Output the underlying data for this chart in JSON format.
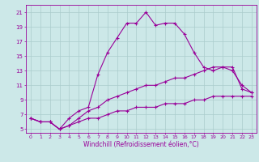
{
  "title": "",
  "xlabel": "Windchill (Refroidissement éolien,°C)",
  "ylabel": "",
  "bg_color": "#cce8e8",
  "grid_color": "#aacccc",
  "line_color": "#990099",
  "xlim": [
    -0.5,
    23.5
  ],
  "ylim": [
    4.5,
    22.0
  ],
  "xticks": [
    0,
    1,
    2,
    3,
    4,
    5,
    6,
    7,
    8,
    9,
    10,
    11,
    12,
    13,
    14,
    15,
    16,
    17,
    18,
    19,
    20,
    21,
    22,
    23
  ],
  "yticks": [
    5,
    7,
    9,
    11,
    13,
    15,
    17,
    19,
    21
  ],
  "curve1_x": [
    0,
    1,
    2,
    3,
    4,
    5,
    6,
    7,
    8,
    9,
    10,
    11,
    12,
    13,
    14,
    15,
    16,
    17,
    18,
    19,
    20,
    21,
    22,
    23
  ],
  "curve1_y": [
    6.5,
    6.0,
    6.0,
    5.0,
    6.5,
    7.5,
    8.0,
    12.5,
    15.5,
    17.5,
    19.5,
    19.5,
    21.0,
    19.2,
    19.5,
    19.5,
    18.0,
    15.5,
    13.5,
    13.0,
    13.5,
    13.0,
    11.0,
    10.0
  ],
  "curve2_x": [
    0,
    1,
    2,
    3,
    4,
    5,
    6,
    7,
    8,
    9,
    10,
    11,
    12,
    13,
    14,
    15,
    16,
    17,
    18,
    19,
    20,
    21,
    22,
    23
  ],
  "curve2_y": [
    6.5,
    6.0,
    6.0,
    5.0,
    5.5,
    6.5,
    7.5,
    8.0,
    9.0,
    9.5,
    10.0,
    10.5,
    11.0,
    11.0,
    11.5,
    12.0,
    12.0,
    12.5,
    13.0,
    13.5,
    13.5,
    13.5,
    10.5,
    10.0
  ],
  "curve3_x": [
    0,
    1,
    2,
    3,
    4,
    5,
    6,
    7,
    8,
    9,
    10,
    11,
    12,
    13,
    14,
    15,
    16,
    17,
    18,
    19,
    20,
    21,
    22,
    23
  ],
  "curve3_y": [
    6.5,
    6.0,
    6.0,
    5.0,
    5.5,
    6.0,
    6.5,
    6.5,
    7.0,
    7.5,
    7.5,
    8.0,
    8.0,
    8.0,
    8.5,
    8.5,
    8.5,
    9.0,
    9.0,
    9.5,
    9.5,
    9.5,
    9.5,
    9.5
  ],
  "marker": "+",
  "markersize": 3,
  "linewidth": 0.8
}
